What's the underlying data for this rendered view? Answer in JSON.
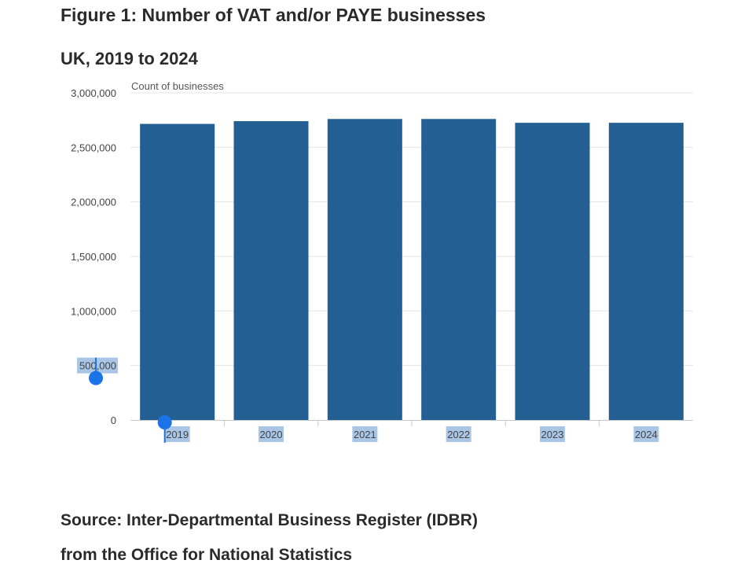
{
  "header": {
    "title": "Figure 1: Number of VAT and/or PAYE businesses",
    "subtitle": "UK, 2019 to 2024"
  },
  "chart_data": {
    "type": "bar",
    "categories": [
      "2019",
      "2020",
      "2021",
      "2022",
      "2023",
      "2024"
    ],
    "values": [
      2715000,
      2740000,
      2760000,
      2760000,
      2725000,
      2725000
    ],
    "ylabel": "Count of businesses",
    "ylim": [
      0,
      3000000
    ],
    "yticks": [
      "0",
      "500,000",
      "1,000,000",
      "1,500,000",
      "2,000,000",
      "2,500,000",
      "3,000,000"
    ],
    "grid": true,
    "legend": "none",
    "bar_color": "#235f92",
    "selection_color": "#a9c6e6",
    "handle_color": "#1a73e8"
  },
  "source": {
    "line1": "Source: Inter-Departmental Business Register (IDBR)",
    "line2": "from the Office for National Statistics"
  }
}
